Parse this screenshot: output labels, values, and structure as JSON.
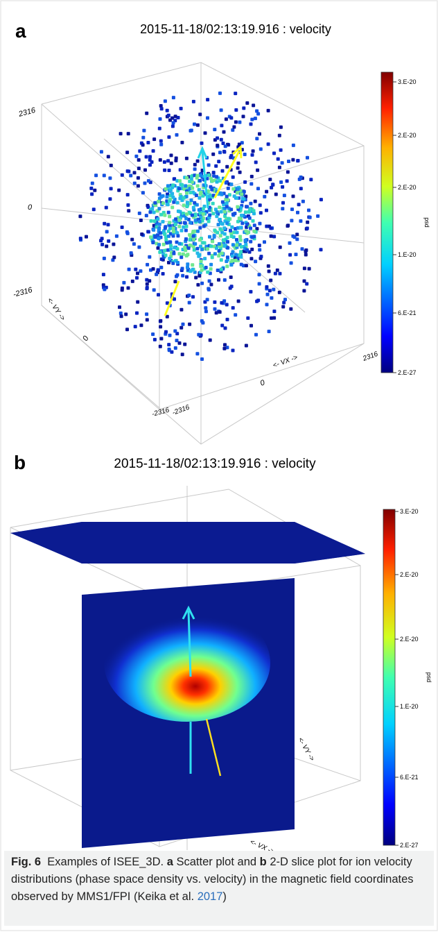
{
  "panel_a": {
    "label": "a",
    "title": "2015-11-18/02:13:19.916 : velocity",
    "z_ticks": [
      "2316",
      "0",
      "-2316"
    ],
    "y_ticks": [
      "0",
      "-2316"
    ],
    "x_ticks": [
      "2316",
      "0",
      "-2316"
    ],
    "x_label": "<- VX ->",
    "y_label": "<- VY ->",
    "colorbar": {
      "label": "psd",
      "ticks": [
        "3.E-20",
        "2.E-20",
        "2.E-20",
        "1.E-20",
        "6.E-21",
        "2.E-27"
      ]
    }
  },
  "panel_b": {
    "label": "b",
    "title": "2015-11-18/02:13:19.916 : velocity",
    "x_label": "<- VX ->",
    "y_label": "<- VY ->",
    "colorbar": {
      "label": "psd",
      "ticks": [
        "3.E-20",
        "2.E-20",
        "2.E-20",
        "1.E-20",
        "6.E-21",
        "2.E-27"
      ]
    }
  },
  "caption": {
    "label": "Fig. 6",
    "text_1": "Examples of ISEE_3D.",
    "panel_a": "a",
    "text_2": "Scatter plot and",
    "panel_b": "b",
    "text_3": "2-D slice plot for ion velocity distributions (phase space density vs. velocity) in the magnetic field coordinates observed by MMS1/FPI (Keika et al.",
    "year": "2017",
    "close": ")"
  }
}
